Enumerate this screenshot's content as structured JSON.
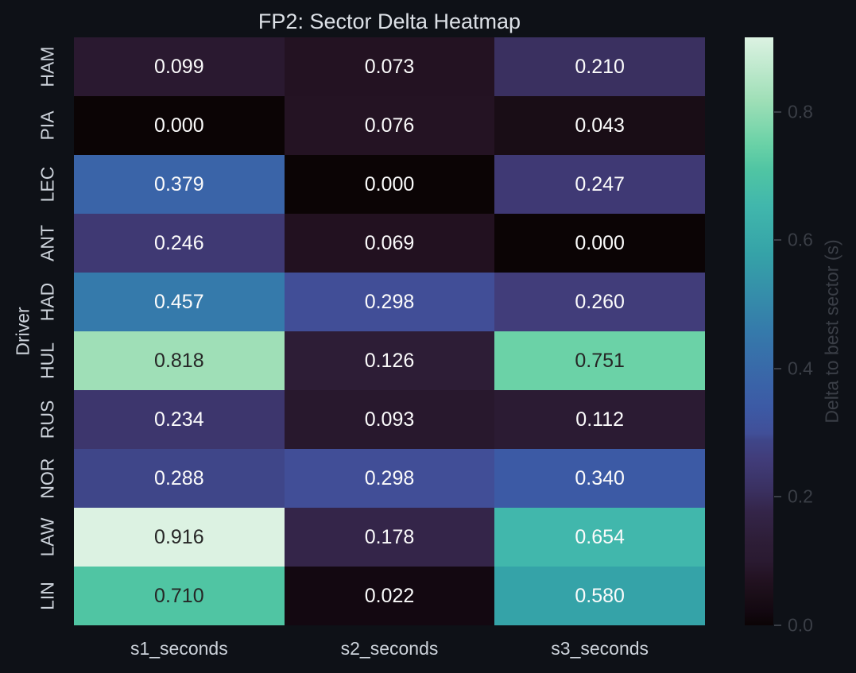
{
  "figure": {
    "background": "#0e1117",
    "title_color": "#dce0e6",
    "tick_label_color": "#ccd2da",
    "colorbar_text_color": "#3a3e46"
  },
  "chart_data": {
    "type": "heatmap",
    "title": "FP2: Sector Delta Heatmap",
    "xlabel": "",
    "ylabel": "Driver",
    "columns": [
      "s1_seconds",
      "s2_seconds",
      "s3_seconds"
    ],
    "rows": [
      "HAM",
      "PIA",
      "LEC",
      "ANT",
      "HAD",
      "HUL",
      "RUS",
      "NOR",
      "LAW",
      "LIN"
    ],
    "values": [
      [
        0.099,
        0.073,
        0.21
      ],
      [
        0.0,
        0.076,
        0.043
      ],
      [
        0.379,
        0.0,
        0.247
      ],
      [
        0.246,
        0.069,
        0.0
      ],
      [
        0.457,
        0.298,
        0.26
      ],
      [
        0.818,
        0.126,
        0.751
      ],
      [
        0.234,
        0.093,
        0.112
      ],
      [
        0.288,
        0.298,
        0.34
      ],
      [
        0.916,
        0.178,
        0.654
      ],
      [
        0.71,
        0.022,
        0.58
      ]
    ],
    "value_decimals": 3,
    "legend_position": "right-colorbar",
    "grid": false,
    "colorbar": {
      "label": "Delta to best sector (s)",
      "vmin": 0.0,
      "vmax": 0.916,
      "ticks": [
        {
          "label": "0.0",
          "value": 0.0
        },
        {
          "label": "0.2",
          "value": 0.2
        },
        {
          "label": "0.4",
          "value": 0.4
        },
        {
          "label": "0.6",
          "value": 0.6
        },
        {
          "label": "0.8",
          "value": 0.8
        }
      ]
    },
    "colormap": {
      "name": "mako",
      "stops": [
        {
          "at": 0.0,
          "color": "#0b0405"
        },
        {
          "at": 0.024,
          "color": "#130811"
        },
        {
          "at": 0.047,
          "color": "#190d16"
        },
        {
          "at": 0.08,
          "color": "#231222"
        },
        {
          "at": 0.11,
          "color": "#2a1a31"
        },
        {
          "at": 0.14,
          "color": "#2d1d36"
        },
        {
          "at": 0.194,
          "color": "#342549"
        },
        {
          "at": 0.229,
          "color": "#3a3060"
        },
        {
          "at": 0.258,
          "color": "#3d376e"
        },
        {
          "at": 0.272,
          "color": "#403a75"
        },
        {
          "at": 0.285,
          "color": "#413d7b"
        },
        {
          "at": 0.315,
          "color": "#3f4689"
        },
        {
          "at": 0.326,
          "color": "#414f98"
        },
        {
          "at": 0.371,
          "color": "#3c5aa5"
        },
        {
          "at": 0.414,
          "color": "#3a64a8"
        },
        {
          "at": 0.5,
          "color": "#357aab"
        },
        {
          "at": 0.633,
          "color": "#35a3a8"
        },
        {
          "at": 0.714,
          "color": "#41b7ac"
        },
        {
          "at": 0.775,
          "color": "#50c5a3"
        },
        {
          "at": 0.82,
          "color": "#6bd2a7"
        },
        {
          "at": 0.893,
          "color": "#9fdfb7"
        },
        {
          "at": 1.0,
          "color": "#dcf2e2"
        }
      ]
    },
    "annotation_colors": {
      "on_dark_cell": "#fbfbfb",
      "on_light_cell": "#262626",
      "luminance_threshold": 0.6
    }
  }
}
